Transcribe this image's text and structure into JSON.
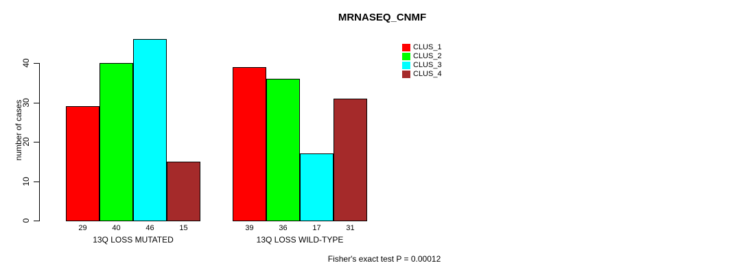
{
  "title": "MRNASEQ_CNMF",
  "footer": "Fisher's exact test P = 0.00012",
  "chart_data": {
    "type": "bar",
    "title": "MRNASEQ_CNMF",
    "xlabel": "",
    "ylabel": "number of cases",
    "ylim": [
      0,
      46
    ],
    "yticks": [
      0,
      10,
      20,
      30,
      40
    ],
    "grid": false,
    "legend_position": "top-right",
    "categories": [
      "13Q LOSS MUTATED",
      "13Q LOSS WILD-TYPE"
    ],
    "series": [
      {
        "name": "CLUS_1",
        "color": "#ff0000",
        "values": [
          29,
          39
        ]
      },
      {
        "name": "CLUS_2",
        "color": "#00ff00",
        "values": [
          40,
          36
        ]
      },
      {
        "name": "CLUS_3",
        "color": "#00ffff",
        "values": [
          46,
          17
        ]
      },
      {
        "name": "CLUS_4",
        "color": "#a52a2a",
        "values": [
          15,
          31
        ]
      }
    ],
    "bar_labels": [
      [
        29,
        40,
        46,
        15
      ],
      [
        39,
        36,
        17,
        31
      ]
    ],
    "annotation": "Fisher's exact test P = 0.00012"
  }
}
